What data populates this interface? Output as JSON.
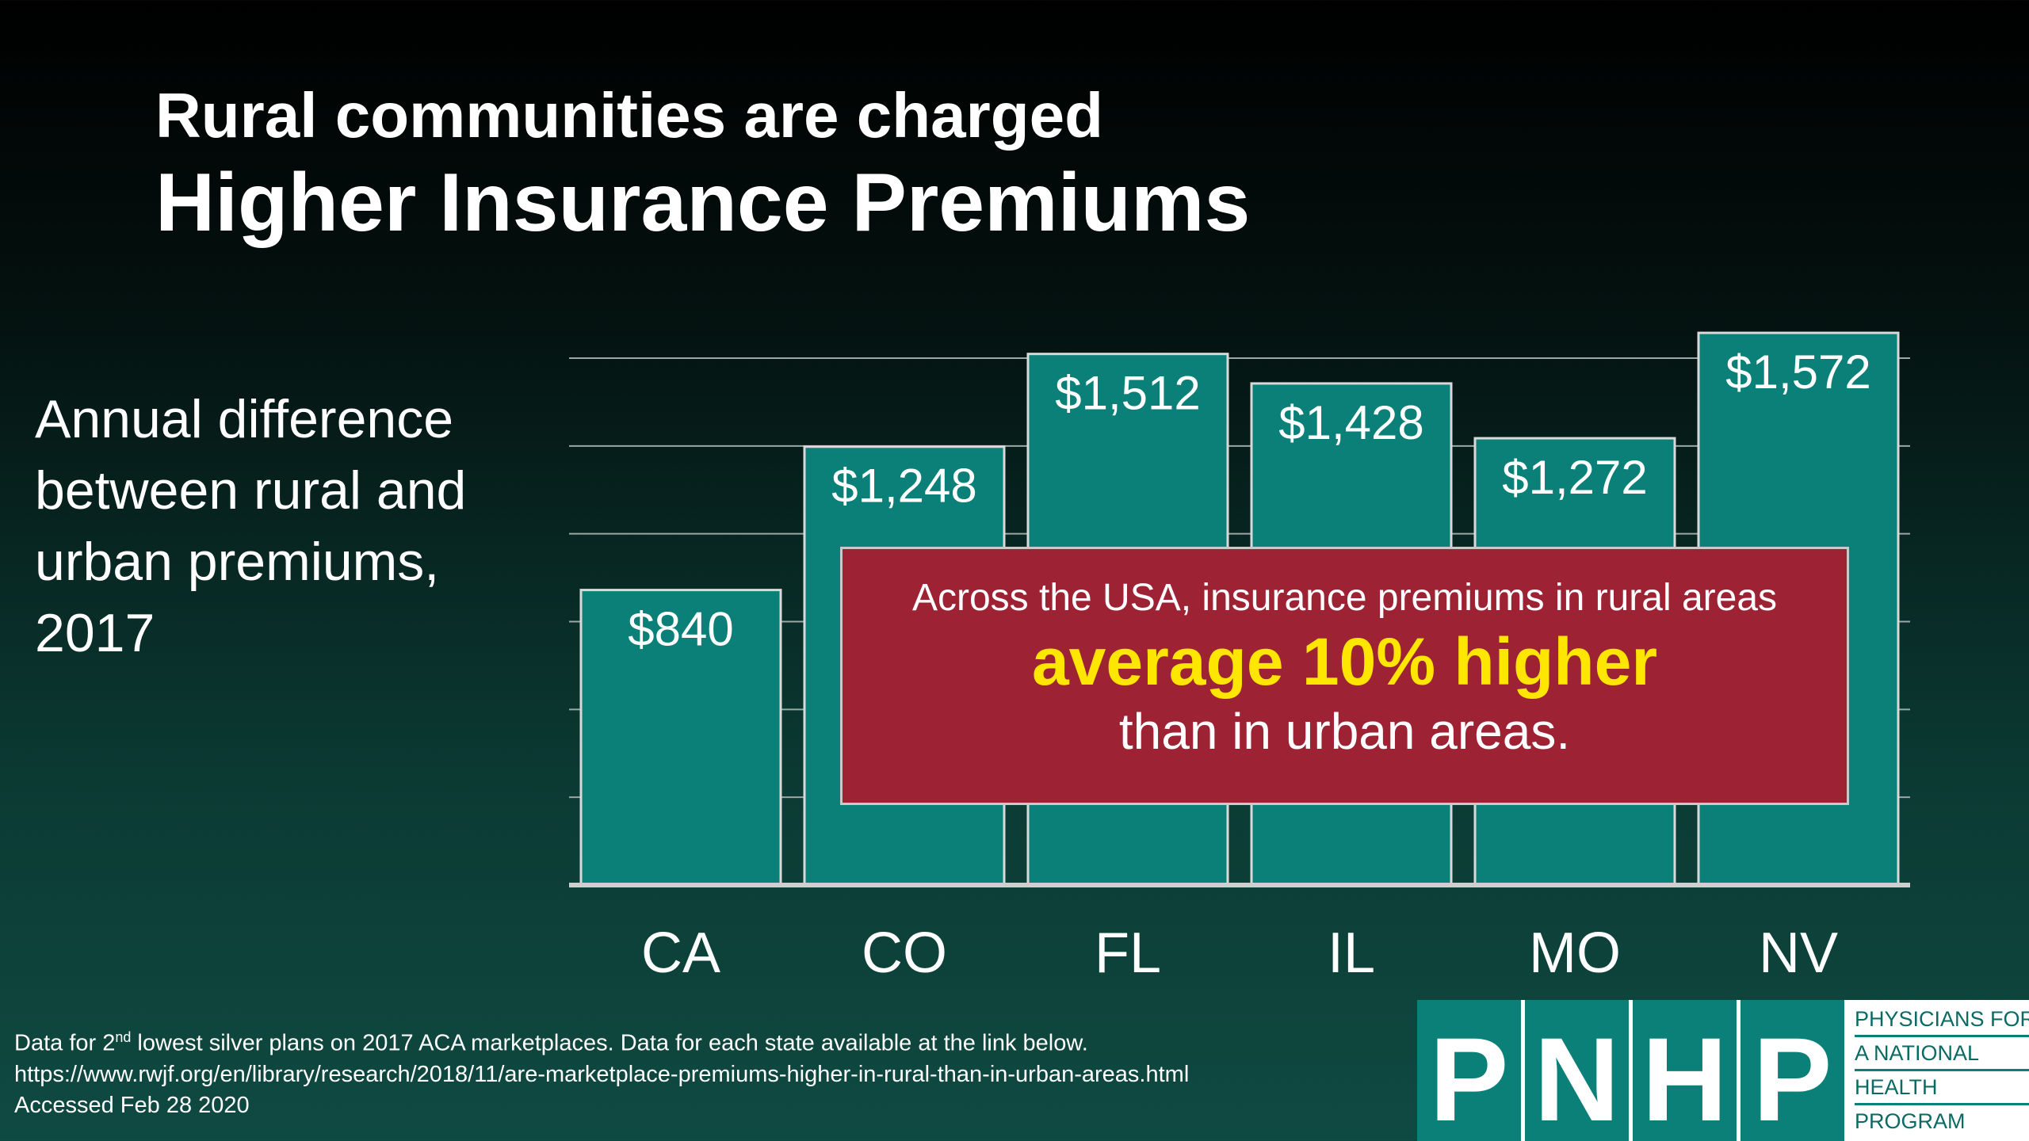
{
  "title": {
    "line1": "Rural communities are charged",
    "line2": "Higher Insurance Premiums"
  },
  "side_label": {
    "lines": [
      "Annual difference",
      "between rural and",
      "urban premiums,",
      "2017"
    ]
  },
  "chart_data": {
    "type": "bar",
    "categories": [
      "CA",
      "CO",
      "FL",
      "IL",
      "MO",
      "NV"
    ],
    "values": [
      840,
      1248,
      1512,
      1428,
      1272,
      1572
    ],
    "value_labels": [
      "$840",
      "$1,248",
      "$1,512",
      "$1,428",
      "$1,272",
      "$1,572"
    ],
    "ylim": [
      0,
      1500
    ],
    "grid": true,
    "bar_color": "#0b8078",
    "axis_color": "#cfcfcf"
  },
  "callout": {
    "line1": "Across the USA, insurance premiums in rural areas",
    "line2": "average 10% higher",
    "line3": "than in urban areas.",
    "background": "#9d2334",
    "highlight_color": "#ffe600"
  },
  "footnote": {
    "line1_pre": "Data for 2",
    "line1_sup": "nd",
    "line1_post": " lowest silver plans on 2017 ACA marketplaces. Data for each state available at the link below.",
    "line2": "https://www.rwjf.org/en/library/research/2018/11/are-marketplace-premiums-higher-in-rural-than-in-urban-areas.html",
    "line3": "Accessed Feb 28 2020"
  },
  "logo": {
    "letters": [
      "P",
      "N",
      "H",
      "P"
    ],
    "text_lines": [
      "PHYSICIANS FOR",
      "A NATIONAL",
      "HEALTH",
      "PROGRAM"
    ],
    "emblem_icon": "caduceus-icon"
  }
}
